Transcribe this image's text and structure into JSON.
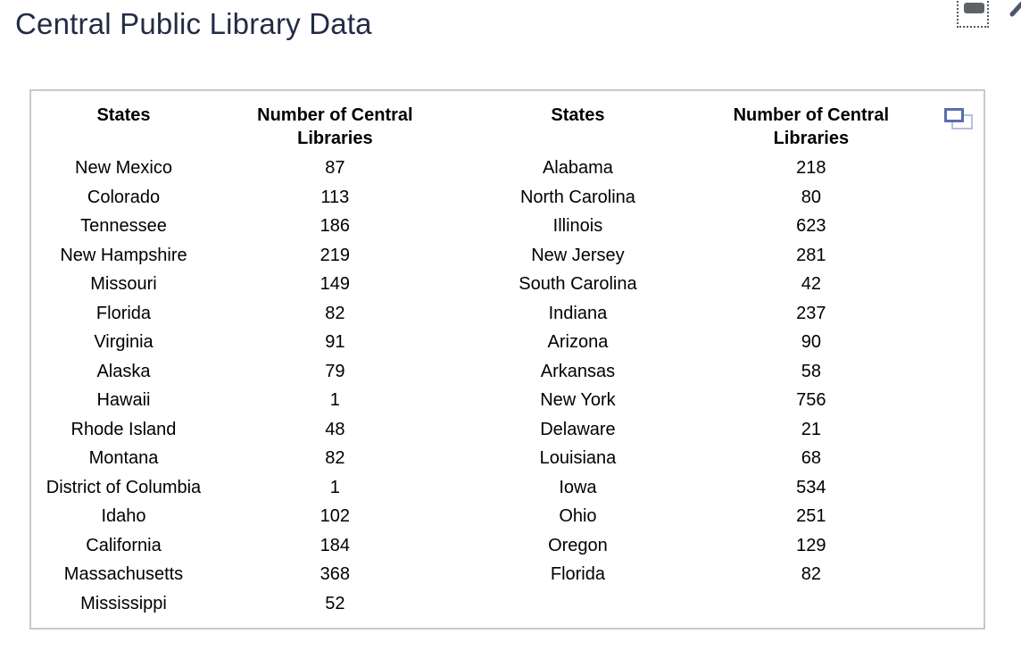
{
  "page": {
    "title": "Central Public Library Data"
  },
  "colors": {
    "title": "#212c46",
    "card_border": "#c9c9c9",
    "duplicate_icon_front": "#5b6cad",
    "duplicate_icon_back": "#b7bedf",
    "drag_handle": "#5f6368",
    "pencil": "#4a586a"
  },
  "table": {
    "headers": [
      "States",
      "Number of Central Libraries",
      "States",
      "Number of Central Libraries"
    ],
    "left_rows": [
      [
        "New Mexico",
        "87"
      ],
      [
        "Colorado",
        "113"
      ],
      [
        "Tennessee",
        "186"
      ],
      [
        "New Hampshire",
        "219"
      ],
      [
        "Missouri",
        "149"
      ],
      [
        "Florida",
        "82"
      ],
      [
        "Virginia",
        "91"
      ],
      [
        "Alaska",
        "79"
      ],
      [
        "Hawaii",
        "1"
      ],
      [
        "Rhode Island",
        "48"
      ],
      [
        "Montana",
        "82"
      ],
      [
        "District of Columbia",
        "1"
      ],
      [
        "Idaho",
        "102"
      ],
      [
        "California",
        "184"
      ],
      [
        "Massachusetts",
        "368"
      ],
      [
        "Mississippi",
        "52"
      ]
    ],
    "right_rows": [
      [
        "Alabama",
        "218"
      ],
      [
        "North Carolina",
        "80"
      ],
      [
        "Illinois",
        "623"
      ],
      [
        "New Jersey",
        "281"
      ],
      [
        "South Carolina",
        "42"
      ],
      [
        "Indiana",
        "237"
      ],
      [
        "Arizona",
        "90"
      ],
      [
        "Arkansas",
        "58"
      ],
      [
        "New York",
        "756"
      ],
      [
        "Delaware",
        "21"
      ],
      [
        "Louisiana",
        "68"
      ],
      [
        "Iowa",
        "534"
      ],
      [
        "Ohio",
        "251"
      ],
      [
        "Oregon",
        "129"
      ],
      [
        "Florida",
        "82"
      ]
    ]
  }
}
